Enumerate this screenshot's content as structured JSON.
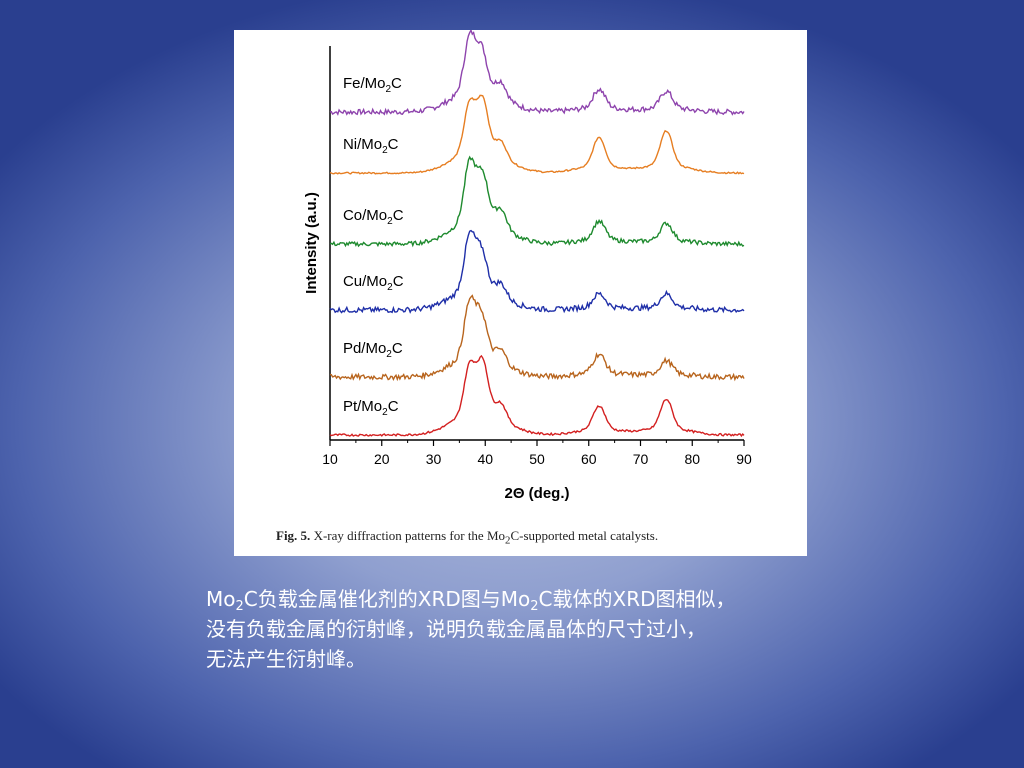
{
  "figure": {
    "caption_label": "Fig. 5.",
    "caption_pre": "X-ray diffraction patterns for the Mo",
    "caption_sub": "2",
    "caption_post": "C-supported metal catalysts."
  },
  "chart_data": {
    "type": "line",
    "title": "",
    "xlabel": "2Θ (deg.)",
    "ylabel": "Intensity (a.u.)",
    "xlim": [
      10,
      90
    ],
    "x_ticks": [
      10,
      20,
      30,
      40,
      50,
      60,
      70,
      80,
      90
    ],
    "y_ticks_shown": false,
    "grid": false,
    "legend": "inline labels above each trace",
    "series": [
      {
        "name": "Fe/Mo2C",
        "label_main": "Fe/Mo",
        "label_sub": "2",
        "label_end": "C",
        "color": "#8e44ad",
        "peaks": [
          [
            37,
            1.0
          ],
          [
            39.3,
            0.75
          ],
          [
            43,
            0.3
          ],
          [
            62,
            0.35
          ],
          [
            75,
            0.32
          ]
        ],
        "noise": 0.1
      },
      {
        "name": "Ni/Mo2C",
        "label_main": "Ni/Mo",
        "label_sub": "2",
        "label_end": "C",
        "color": "#e67e22",
        "peaks": [
          [
            37,
            0.9
          ],
          [
            39.5,
            0.95
          ],
          [
            43,
            0.3
          ],
          [
            62,
            0.55
          ],
          [
            75,
            0.65
          ]
        ],
        "noise": 0.03
      },
      {
        "name": "Co/Mo2C",
        "label_main": "Co/Mo",
        "label_sub": "2",
        "label_end": "C",
        "color": "#1e8a2e",
        "peaks": [
          [
            37,
            1.1
          ],
          [
            39.5,
            0.85
          ],
          [
            43,
            0.35
          ],
          [
            62,
            0.35
          ],
          [
            75,
            0.32
          ]
        ],
        "noise": 0.08
      },
      {
        "name": "Cu/Mo2C",
        "label_main": "Cu/Mo",
        "label_sub": "2",
        "label_end": "C",
        "color": "#1f2fa8",
        "peaks": [
          [
            37,
            1.0
          ],
          [
            39.3,
            0.7
          ],
          [
            43,
            0.25
          ],
          [
            62,
            0.25
          ],
          [
            75,
            0.25
          ]
        ],
        "noise": 0.1
      },
      {
        "name": "Pd/Mo2C",
        "label_main": "Pd/Mo",
        "label_sub": "2",
        "label_end": "C",
        "color": "#b8651e",
        "peaks": [
          [
            37,
            1.0
          ],
          [
            39.3,
            0.75
          ],
          [
            43,
            0.25
          ],
          [
            62,
            0.35
          ],
          [
            75,
            0.25
          ]
        ],
        "noise": 0.1
      },
      {
        "name": "Pt/Mo2C",
        "label_main": "Pt/Mo",
        "label_sub": "2",
        "label_end": "C",
        "color": "#d32020",
        "peaks": [
          [
            37,
            0.9
          ],
          [
            39.5,
            0.95
          ],
          [
            43,
            0.3
          ],
          [
            62,
            0.45
          ],
          [
            75,
            0.55
          ]
        ],
        "noise": 0.04
      }
    ]
  },
  "slide_text": {
    "line1_a": "Mo",
    "line1_sub": "2",
    "line1_b": "C负载金属催化剂的XRD图与Mo",
    "line1_sub2": "2",
    "line1_c": "C载体的XRD图相似，",
    "line2": "没有负载金属的衍射峰，说明负载金属晶体的尺寸过小，",
    "line3": "无法产生衍射峰。"
  }
}
